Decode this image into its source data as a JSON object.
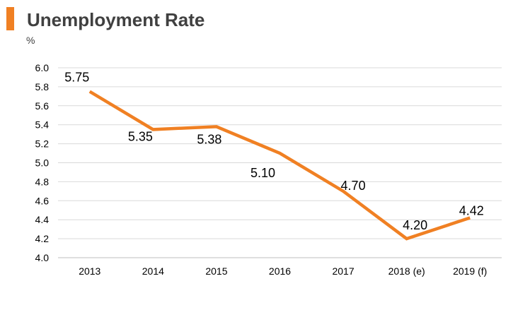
{
  "chart_data": {
    "type": "line",
    "title": "Unemployment Rate",
    "ylabel": "%",
    "categories": [
      "2013",
      "2014",
      "2015",
      "2016",
      "2017",
      "2018 (e)",
      "2019 (f)"
    ],
    "series": [
      {
        "values": [
          5.75,
          5.35,
          5.38,
          5.1,
          4.7,
          4.2,
          4.42
        ],
        "labels": [
          "5.75",
          "5.35",
          "5.38",
          "5.10",
          "4.70",
          "4.20",
          "4.42"
        ],
        "color": "#F08023"
      }
    ],
    "ylim": [
      4.0,
      6.0
    ],
    "yticks": [
      "4.0",
      "4.2",
      "4.4",
      "4.6",
      "4.8",
      "5.0",
      "5.2",
      "5.4",
      "5.6",
      "5.8",
      "6.0"
    ],
    "grid": true,
    "legend": "none",
    "accent_color": "#F08023"
  }
}
